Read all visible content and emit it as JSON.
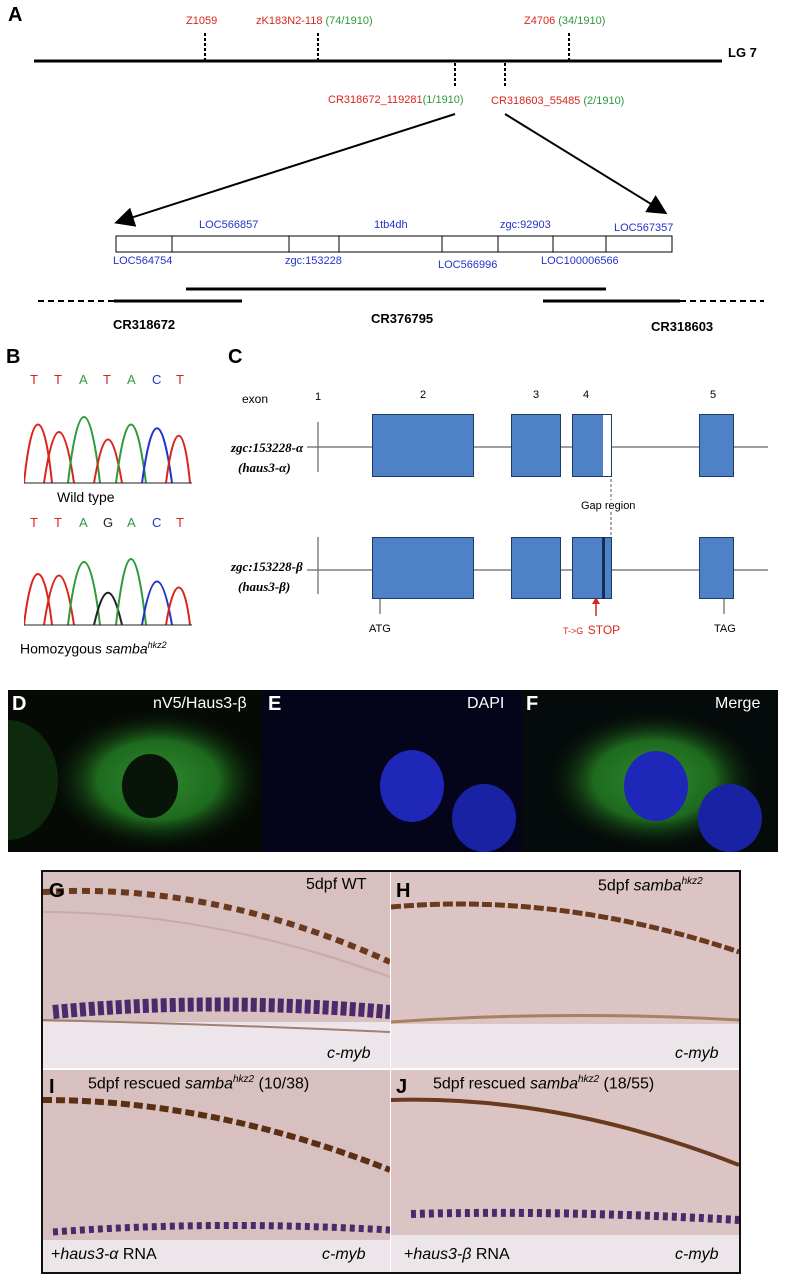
{
  "panelA": {
    "label": "A",
    "lg": "LG 7",
    "top_markers": [
      {
        "name": "Z1059",
        "count": ""
      },
      {
        "name": "zK183N2-118",
        "count": "(74/1910)"
      },
      {
        "name": "Z4706",
        "count": "(34/1910)"
      }
    ],
    "bottom_markers": [
      {
        "name": "CR318672_119281",
        "count": "(1/1910)"
      },
      {
        "name": "CR318603_55485",
        "count": "(2/1910)"
      }
    ],
    "genes_top": [
      "LOC566857",
      "1tb4dh",
      "zgc:92903",
      "LOC567357"
    ],
    "genes_bottom": [
      "LOC564754",
      "zgc:153228",
      "LOC566996",
      "LOC100006566"
    ],
    "clones": [
      "CR318672",
      "CR376795",
      "CR318603"
    ]
  },
  "panelB": {
    "label": "B",
    "wt_seq": [
      "T",
      "T",
      "A",
      "T",
      "A",
      "C",
      "T"
    ],
    "wt_label": "Wild type",
    "mut_seq": [
      "T",
      "T",
      "A",
      "G",
      "A",
      "C",
      "T"
    ],
    "mut_label_prefix": "Homozygous ",
    "mut_label_italic": "samba",
    "mut_label_sup": "hkz2"
  },
  "panelC": {
    "label": "C",
    "exon_word": "exon",
    "exon_numbers": [
      "1",
      "2",
      "3",
      "4",
      "5"
    ],
    "alpha_name": "zgc:153228-α",
    "alpha_short": "(haus3-α)",
    "beta_name": "zgc:153228-β",
    "beta_short": "(haus3-β)",
    "gap_label": "Gap region",
    "atg": "ATG",
    "mutation_small": "T->G",
    "mutation_big": "STOP",
    "tag": "TAG"
  },
  "panelsDEF": [
    {
      "label": "D",
      "title": "nV5/Haus3-β"
    },
    {
      "label": "E",
      "title": "DAPI"
    },
    {
      "label": "F",
      "title": "Merge"
    }
  ],
  "panelG": {
    "label": "G",
    "title": "5dpf WT",
    "probe": "c-myb"
  },
  "panelH": {
    "label": "H",
    "title_prefix": "5dpf ",
    "title_italic": "samba",
    "title_sup": "hkz2",
    "probe": "c-myb"
  },
  "panelI": {
    "label": "I",
    "title_prefix": "5dpf rescued ",
    "title_italic": "samba",
    "title_sup": "hkz2",
    "title_suffix": " (10/38)",
    "rna_plus": "+",
    "rna_italic": "haus3-α",
    "rna_suffix": " RNA",
    "probe": "c-myb"
  },
  "panelJ": {
    "label": "J",
    "title_prefix": "5dpf rescued ",
    "title_italic": "samba",
    "title_sup": "hkz2",
    "title_suffix": " (18/55)",
    "rna_plus": "+",
    "rna_italic": "haus3-β",
    "rna_suffix": " RNA",
    "probe": "c-myb"
  },
  "colors": {
    "exon": "#4f81c7",
    "marker_red": "#d9261c",
    "count_green": "#2e9a3a",
    "gene_blue": "#2233cc"
  }
}
